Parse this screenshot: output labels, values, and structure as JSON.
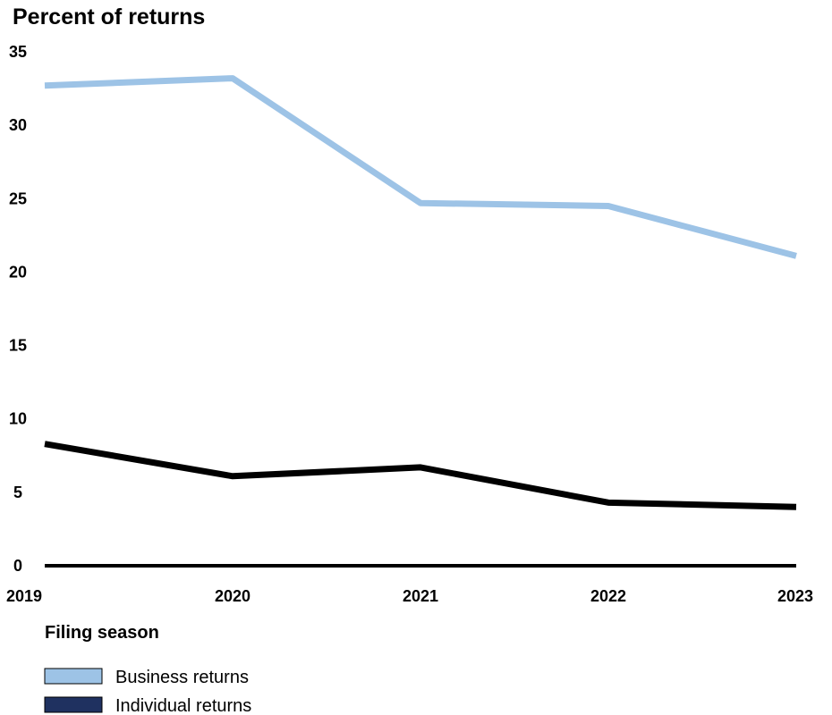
{
  "chart_data": {
    "type": "line",
    "title": "Percent of returns",
    "xlabel": "Filing season",
    "ylabel": "",
    "categories": [
      "2019",
      "2020",
      "2021",
      "2022",
      "2023"
    ],
    "yticks": [
      "0",
      "5",
      "10",
      "15",
      "20",
      "25",
      "30",
      "35"
    ],
    "ylim": [
      0,
      35
    ],
    "grid": false,
    "legend_position": "bottom-left",
    "series": [
      {
        "name": "Business returns",
        "values": [
          32.7,
          33.2,
          24.7,
          24.5,
          21.1
        ],
        "color": "#9dc3e6",
        "legend_swatch_color": "#9dc3e6"
      },
      {
        "name": "Individual returns",
        "values": [
          8.3,
          6.1,
          6.7,
          4.3,
          4.0
        ],
        "color": "#000000",
        "legend_swatch_color": "#1f3160"
      }
    ]
  }
}
